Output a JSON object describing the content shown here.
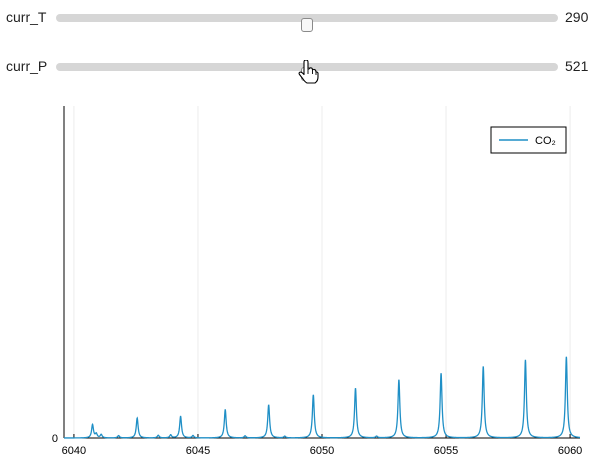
{
  "sliders": [
    {
      "label": "curr_T",
      "value": "290",
      "position": 0.5
    },
    {
      "label": "curr_P",
      "value": "521",
      "position": 0.5
    }
  ],
  "colors": {
    "series": "#1f8fc6",
    "track": "#d6d6d6",
    "axis": "#000000",
    "grid": "#ececec"
  },
  "chart_data": {
    "type": "line",
    "title": "",
    "xlabel": "",
    "ylabel": "",
    "xlim": [
      6039.6,
      6060.4
    ],
    "ylim": [
      0,
      1
    ],
    "x_ticks": [
      6040,
      6045,
      6050,
      6055,
      6060
    ],
    "x_tick_labels": [
      "6040",
      "6045",
      "6050",
      "6055",
      "6060"
    ],
    "y_ticks": [
      0
    ],
    "y_tick_labels": [
      "0"
    ],
    "grid": true,
    "legend": "top-right",
    "series": [
      {
        "name": "CO₂",
        "peaks": [
          {
            "x": 6040.75,
            "y": 0.04
          },
          {
            "x": 6040.9,
            "y": 0.012
          },
          {
            "x": 6041.1,
            "y": 0.01
          },
          {
            "x": 6041.8,
            "y": 0.007
          },
          {
            "x": 6042.55,
            "y": 0.06
          },
          {
            "x": 6043.4,
            "y": 0.008
          },
          {
            "x": 6043.9,
            "y": 0.009
          },
          {
            "x": 6044.3,
            "y": 0.065
          },
          {
            "x": 6044.8,
            "y": 0.007
          },
          {
            "x": 6046.1,
            "y": 0.085
          },
          {
            "x": 6046.9,
            "y": 0.006
          },
          {
            "x": 6047.85,
            "y": 0.1
          },
          {
            "x": 6048.5,
            "y": 0.005
          },
          {
            "x": 6049.65,
            "y": 0.13
          },
          {
            "x": 6051.35,
            "y": 0.15
          },
          {
            "x": 6052.2,
            "y": 0.005
          },
          {
            "x": 6053.1,
            "y": 0.175
          },
          {
            "x": 6054.8,
            "y": 0.195
          },
          {
            "x": 6056.5,
            "y": 0.215
          },
          {
            "x": 6058.2,
            "y": 0.235
          },
          {
            "x": 6059.85,
            "y": 0.245
          }
        ]
      }
    ]
  }
}
